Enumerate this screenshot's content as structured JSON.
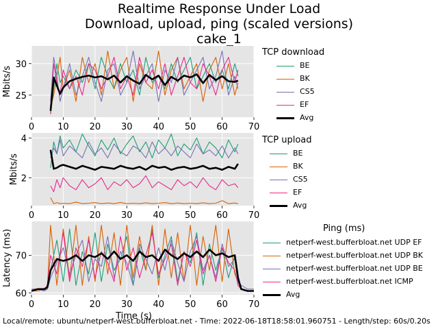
{
  "title_lines": [
    "Realtime Response Under Load",
    "Download, upload, ping (scaled versions)",
    "cake_1"
  ],
  "footer": "Local/remote: ubuntu/netperf-west.bufferbloat.net - Time: 2022-06-18T18:58:01.960751 - Length/step: 60s/0.20s",
  "colors": {
    "BE": "#1b9e77",
    "BK": "#d95f02",
    "CS5": "#7570b3",
    "EF": "#e7298a",
    "Avg": "#000000",
    "panel_bg": "#e5e5e5"
  },
  "chart_data": [
    {
      "type": "line",
      "legend_title": "TCP download",
      "ylabel": "Mbits/s",
      "xlim": [
        0,
        70
      ],
      "ylim": [
        21.5,
        32.8
      ],
      "xticks": [
        0,
        10,
        20,
        30,
        40,
        50,
        60,
        70
      ],
      "yticks": [
        25,
        30
      ],
      "grid": true,
      "legend_position": "right",
      "x": [
        6,
        7,
        8,
        9,
        10,
        12,
        14,
        16,
        18,
        20,
        22,
        24,
        26,
        28,
        30,
        32,
        34,
        36,
        38,
        40,
        42,
        44,
        46,
        48,
        50,
        52,
        54,
        56,
        58,
        60,
        62,
        64,
        65
      ],
      "series": [
        {
          "name": "BE",
          "values": [
            22,
            26,
            30,
            27,
            28,
            26,
            29,
            27,
            30,
            26,
            31,
            28,
            26,
            30,
            27,
            29,
            25,
            31,
            27,
            28,
            26,
            30,
            27,
            29,
            31,
            26,
            28,
            30,
            27,
            29,
            26,
            30,
            28
          ]
        },
        {
          "name": "BK",
          "values": [
            23,
            25,
            28,
            31,
            26,
            29,
            24,
            31,
            27,
            30,
            25,
            32,
            26,
            29,
            31,
            24,
            30,
            27,
            26,
            32,
            25,
            29,
            31,
            26,
            28,
            30,
            24,
            29,
            31,
            26,
            30,
            25,
            27
          ]
        },
        {
          "name": "CS5",
          "values": [
            24,
            31,
            28,
            24,
            26,
            30,
            25,
            28,
            31,
            27,
            24,
            29,
            30,
            25,
            27,
            32,
            26,
            28,
            30,
            24,
            29,
            27,
            31,
            25,
            27,
            29,
            31,
            26,
            28,
            32,
            25,
            28,
            26
          ]
        },
        {
          "name": "EF",
          "values": [
            22,
            30,
            27,
            25,
            29,
            26,
            28,
            25,
            30,
            29,
            26,
            28,
            31,
            26,
            28,
            25,
            31,
            27,
            29,
            26,
            30,
            25,
            28,
            31,
            27,
            26,
            30,
            28,
            25,
            29,
            31,
            27,
            29
          ]
        },
        {
          "name": "Avg",
          "values": [
            22.5,
            27.8,
            26.5,
            25.2,
            26.2,
            27.2,
            27.6,
            27.9,
            28.1,
            27.8,
            28.0,
            27.5,
            28.1,
            27.0,
            28.0,
            27.3,
            26.8,
            28.2,
            27.5,
            28.1,
            26.6,
            27.9,
            27.3,
            28.1,
            27.8,
            28.3,
            26.9,
            28.2,
            27.4,
            28.0,
            27.2,
            27.1,
            27.3
          ]
        }
      ]
    },
    {
      "type": "line",
      "legend_title": "TCP upload",
      "ylabel": "Mbits/s",
      "xlim": [
        0,
        70
      ],
      "ylim": [
        0.6,
        4.25
      ],
      "xticks": [
        0,
        10,
        20,
        30,
        40,
        50,
        60,
        70
      ],
      "yticks": [
        2,
        4
      ],
      "grid": true,
      "legend_position": "right",
      "x": [
        6,
        7,
        8,
        9,
        10,
        12,
        14,
        16,
        18,
        20,
        22,
        24,
        26,
        28,
        30,
        32,
        34,
        36,
        38,
        40,
        42,
        44,
        46,
        48,
        50,
        52,
        54,
        56,
        58,
        60,
        62,
        64,
        65
      ],
      "series": [
        {
          "name": "BE",
          "values": [
            2.5,
            3.8,
            3.2,
            4.1,
            3.5,
            3.9,
            3.3,
            4.2,
            3.6,
            3.1,
            3.9,
            3.4,
            4.0,
            3.2,
            3.7,
            4.1,
            3.3,
            3.8,
            3.0,
            3.9,
            3.5,
            4.2,
            3.1,
            3.7,
            3.4,
            4.0,
            3.2,
            3.8,
            3.5,
            3.0,
            3.9,
            3.3,
            3.7
          ]
        },
        {
          "name": "BK",
          "values": [
            1.0,
            0.7,
            0.75,
            0.7,
            0.72,
            0.7,
            0.78,
            0.7,
            0.72,
            0.75,
            0.7,
            0.73,
            0.7,
            0.76,
            0.7,
            0.72,
            0.7,
            0.74,
            0.7,
            0.72,
            0.75,
            0.7,
            0.73,
            0.7,
            0.72,
            0.7,
            0.74,
            0.7,
            0.72,
            0.85,
            0.7,
            0.73,
            0.7
          ]
        },
        {
          "name": "CS5",
          "values": [
            3.0,
            3.5,
            3.2,
            3.9,
            3.1,
            3.6,
            3.3,
            3.0,
            3.8,
            3.2,
            3.5,
            3.0,
            3.7,
            3.3,
            3.1,
            3.6,
            3.4,
            3.0,
            3.8,
            3.2,
            3.5,
            3.1,
            3.6,
            3.3,
            3.0,
            3.7,
            3.2,
            3.4,
            3.1,
            3.6,
            3.0,
            3.5,
            3.2
          ]
        },
        {
          "name": "EF",
          "values": [
            1.6,
            1.3,
            1.9,
            1.5,
            2.0,
            1.6,
            1.4,
            1.9,
            1.5,
            1.7,
            2.0,
            1.4,
            1.8,
            1.6,
            1.9,
            1.5,
            1.7,
            2.1,
            1.5,
            1.8,
            1.6,
            1.4,
            1.9,
            1.6,
            1.8,
            1.5,
            2.0,
            1.6,
            1.4,
            1.9,
            1.6,
            1.7,
            1.5
          ]
        },
        {
          "name": "Avg",
          "values": [
            3.4,
            2.45,
            2.5,
            2.6,
            2.65,
            2.55,
            2.45,
            2.6,
            2.5,
            2.4,
            2.55,
            2.5,
            2.45,
            2.6,
            2.5,
            2.45,
            2.55,
            2.4,
            2.6,
            2.5,
            2.55,
            2.4,
            2.5,
            2.55,
            2.45,
            2.5,
            2.6,
            2.45,
            2.5,
            2.4,
            2.55,
            2.45,
            2.7
          ]
        }
      ]
    },
    {
      "type": "line",
      "legend_title": "Ping (ms)",
      "ylabel": "Latency (ms)",
      "xlabel": "Time (s)",
      "xlim": [
        0,
        70
      ],
      "ylim": [
        59.5,
        79
      ],
      "xticks": [
        0,
        10,
        20,
        30,
        40,
        50,
        60,
        70
      ],
      "yticks": [
        60,
        70
      ],
      "grid": true,
      "legend_position": "right",
      "x": [
        0,
        2,
        4,
        5,
        6,
        8,
        10,
        12,
        14,
        16,
        18,
        20,
        22,
        24,
        26,
        28,
        30,
        32,
        34,
        36,
        38,
        40,
        42,
        44,
        46,
        48,
        50,
        52,
        54,
        56,
        58,
        60,
        62,
        64,
        65,
        66,
        68,
        70
      ],
      "series": [
        {
          "name": "netperf-west.bufferbloat.net UDP EF",
          "values": [
            60.5,
            61,
            60.5,
            61.5,
            66,
            74,
            63,
            77,
            62,
            71,
            65,
            76,
            63,
            73,
            66,
            69,
            75,
            62,
            72,
            66,
            77,
            64,
            70,
            75,
            63,
            71,
            68,
            76,
            62,
            73,
            66,
            72,
            64,
            70,
            62,
            61,
            60.5,
            60.5
          ]
        },
        {
          "name": "netperf-west.bufferbloat.net UDP BK",
          "values": [
            60.5,
            60.5,
            61,
            61,
            78,
            62,
            77,
            64,
            78,
            62,
            75,
            63,
            78,
            65,
            76,
            62,
            78,
            64,
            75,
            66,
            78,
            62,
            77,
            64,
            76,
            63,
            78,
            62,
            75,
            66,
            78,
            63,
            77,
            65,
            63,
            61,
            60.5,
            60.5
          ]
        },
        {
          "name": "netperf-west.bufferbloat.net UDP BE",
          "values": [
            61,
            61,
            60.5,
            61,
            64,
            68,
            72,
            65,
            70,
            74,
            63,
            69,
            67,
            75,
            64,
            71,
            68,
            62,
            73,
            69,
            65,
            72,
            66,
            74,
            68,
            63,
            71,
            75,
            66,
            70,
            64,
            73,
            67,
            69,
            63,
            62,
            61,
            61
          ]
        },
        {
          "name": "netperf-west.bufferbloat.net ICMP",
          "values": [
            60.5,
            61,
            61,
            62,
            70,
            65,
            76,
            63,
            72,
            67,
            74,
            64,
            71,
            68,
            63,
            75,
            66,
            72,
            64,
            70,
            76,
            65,
            69,
            73,
            62,
            71,
            67,
            74,
            65,
            70,
            63,
            72,
            68,
            66,
            62,
            61,
            60.5,
            60.5
          ]
        },
        {
          "name": "Avg",
          "values": [
            60.5,
            61,
            61,
            61.5,
            66,
            69,
            68.5,
            69,
            70,
            68.5,
            70,
            69.5,
            70.5,
            69,
            71,
            69,
            70,
            68.5,
            71,
            69.5,
            70,
            68.5,
            71.5,
            70,
            69,
            70.5,
            69.5,
            71,
            69.5,
            71.5,
            70,
            70.5,
            69.5,
            70,
            64,
            61,
            60.5,
            60.5
          ]
        }
      ]
    }
  ]
}
